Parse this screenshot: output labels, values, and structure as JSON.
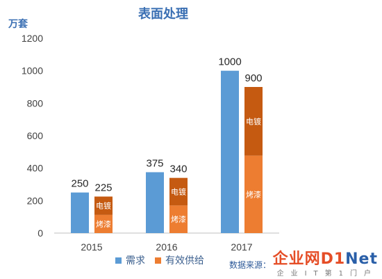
{
  "chart_data": {
    "type": "bar",
    "title": "表面处理",
    "ylabel": "万套",
    "ylim": [
      0,
      1200
    ],
    "yticks": [
      0,
      200,
      400,
      600,
      800,
      1000,
      1200
    ],
    "categories": [
      "2015",
      "2016",
      "2017"
    ],
    "series": [
      {
        "name": "需求",
        "color": "#5b9bd5",
        "values": [
          250,
          375,
          1000
        ]
      },
      {
        "name": "有效供给",
        "color": "#ed7d31",
        "values": [
          225,
          340,
          900
        ],
        "stack": [
          {
            "name": "烤漆",
            "color": "#ed7d31",
            "values": [
              112,
              170,
              477
            ]
          },
          {
            "name": "电镀",
            "color": "#c55a11",
            "values": [
              113,
              170,
              423
            ]
          }
        ]
      }
    ],
    "legend_position": "bottom",
    "grid": false
  },
  "source_text": "数据来源：",
  "watermark": {
    "logo": "企业网D1Net",
    "sub": "企业IT第1门户"
  }
}
